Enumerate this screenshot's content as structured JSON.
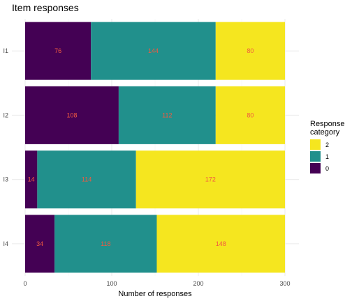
{
  "chart_data": {
    "type": "bar",
    "orientation": "horizontal",
    "stacked": true,
    "title": "Item responses",
    "xlabel": "Number of responses",
    "ylabel": "",
    "xlim": [
      0,
      300
    ],
    "x_ticks": [
      "0",
      "100",
      "200",
      "300"
    ],
    "grid": true,
    "categories": [
      "I1",
      "I2",
      "I3",
      "I4"
    ],
    "series": [
      {
        "name": "0",
        "values": [
          76,
          108,
          14,
          34
        ],
        "color": "#440154"
      },
      {
        "name": "1",
        "values": [
          144,
          112,
          114,
          118
        ],
        "color": "#21908C"
      },
      {
        "name": "2",
        "values": [
          80,
          80,
          172,
          148
        ],
        "color": "#F5E61F"
      }
    ],
    "data_label_color": "#F15A40",
    "legend": {
      "title_lines": [
        "Response",
        "category"
      ],
      "placement": "right",
      "order": [
        "2",
        "1",
        "0"
      ]
    }
  }
}
